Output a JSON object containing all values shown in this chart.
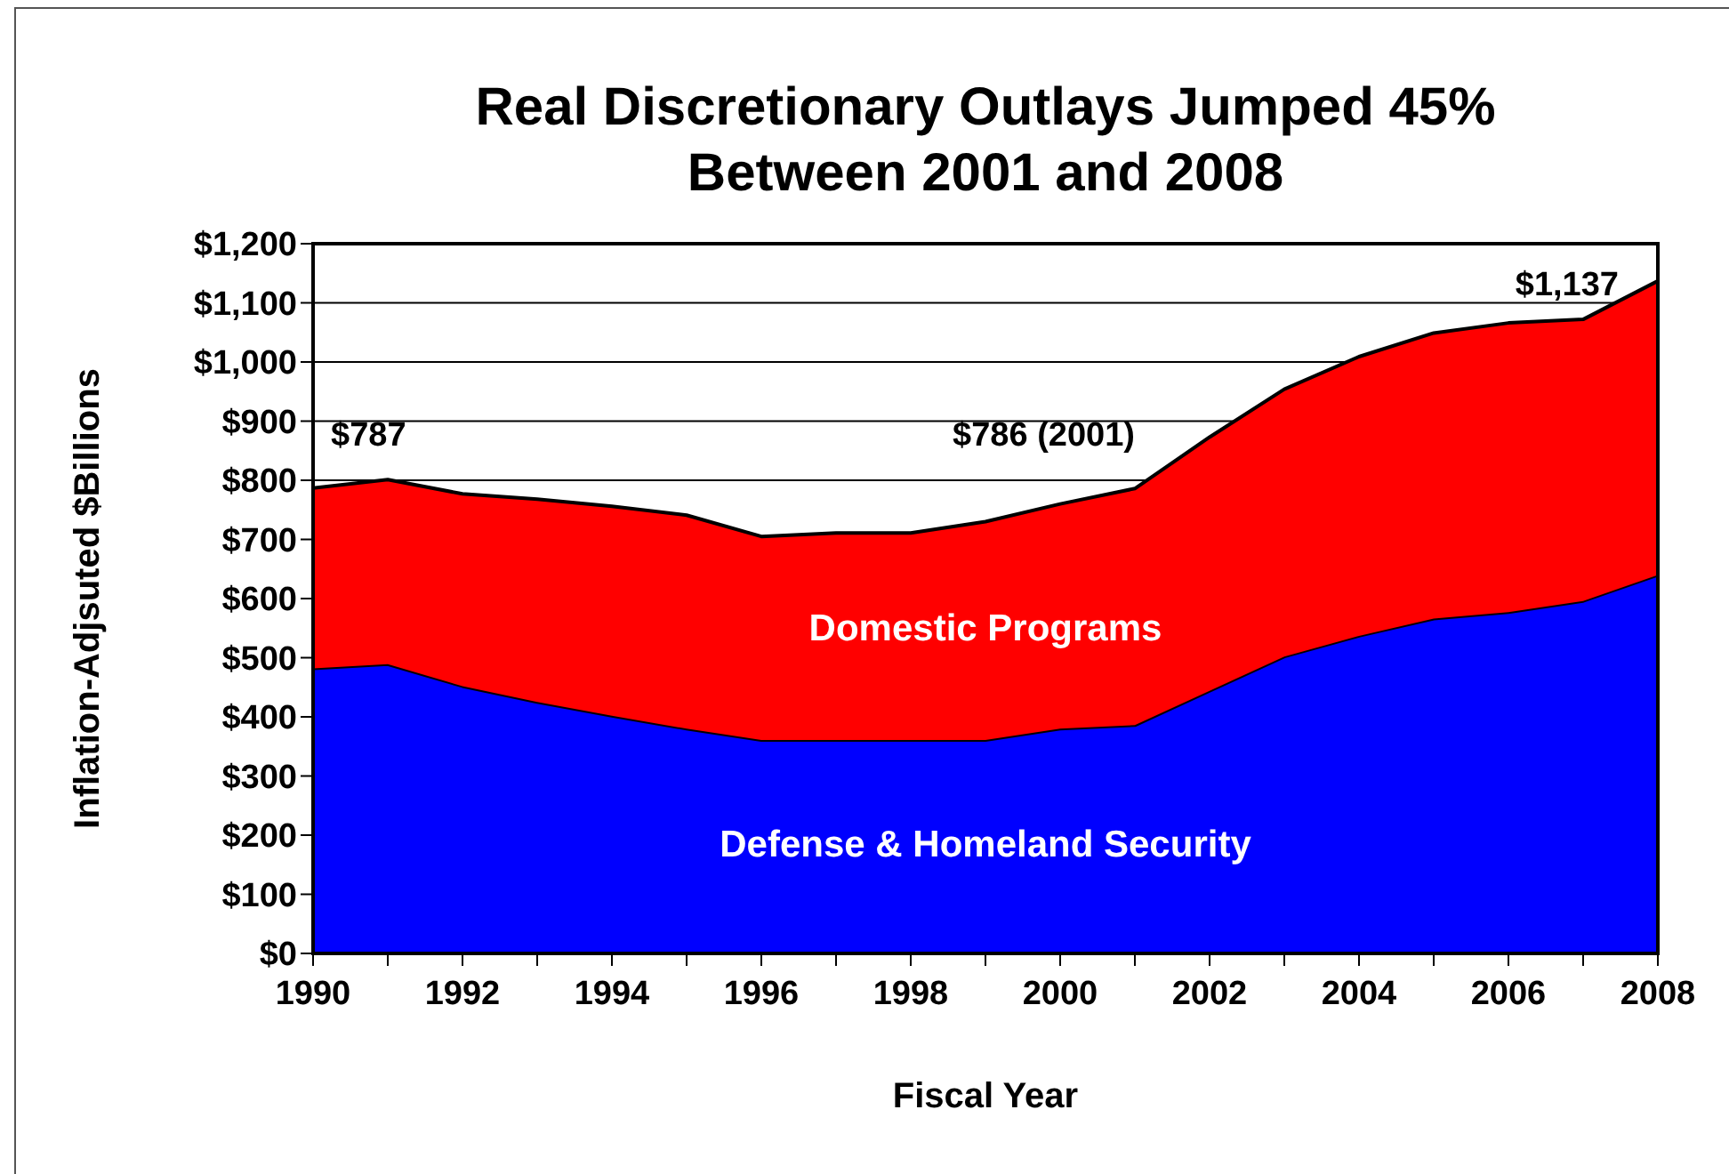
{
  "chart_data": {
    "type": "area",
    "title": "Real Discretionary Outlays Jumped 45% Between 2001 and 2008",
    "xlabel": "Fiscal Year",
    "ylabel": "Inflation-Adjsuted $Billions",
    "stacked": true,
    "grid": "y",
    "x": [
      1990,
      1991,
      1992,
      1993,
      1994,
      1995,
      1996,
      1997,
      1998,
      1999,
      2000,
      2001,
      2002,
      2003,
      2004,
      2005,
      2006,
      2007,
      2008
    ],
    "series": [
      {
        "name": "Defense & Homeland Security",
        "color": "#0000ff",
        "values": [
          482,
          489,
          452,
          425,
          402,
          380,
          361,
          361,
          361,
          361,
          380,
          386,
          444,
          502,
          537,
          566,
          577,
          596,
          640
        ]
      },
      {
        "name": "Domestic Programs",
        "color": "#ff0000",
        "values": [
          305,
          312,
          325,
          343,
          354,
          361,
          344,
          350,
          350,
          369,
          380,
          400,
          429,
          452,
          472,
          483,
          489,
          476,
          497
        ]
      }
    ],
    "xlim": [
      1990,
      2008
    ],
    "xticks": [
      1990,
      {
        "value": 1991,
        "label": null
      },
      1992,
      {
        "value": 1993,
        "label": null
      },
      1994,
      {
        "value": 1995,
        "label": null
      },
      1996,
      {
        "value": 1997,
        "label": null
      },
      1998,
      {
        "value": 1999,
        "label": null
      },
      2000,
      {
        "value": 2001,
        "label": null
      },
      2002,
      {
        "value": 2003,
        "label": null
      },
      2004,
      {
        "value": 2005,
        "label": null
      },
      2006,
      {
        "value": 2007,
        "label": null
      },
      2008
    ],
    "ylim": [
      0,
      1200
    ],
    "yticks": [
      {
        "value": 0,
        "label": "$0"
      },
      {
        "value": 100,
        "label": "$100"
      },
      {
        "value": 200,
        "label": "$200"
      },
      {
        "value": 300,
        "label": "$300"
      },
      {
        "value": 400,
        "label": "$400"
      },
      {
        "value": 500,
        "label": "$500"
      },
      {
        "value": 600,
        "label": "$600"
      },
      {
        "value": 700,
        "label": "$700"
      },
      {
        "value": 800,
        "label": "$800"
      },
      {
        "value": 900,
        "label": "$900"
      },
      {
        "value": 1000,
        "label": "$1,000"
      },
      {
        "value": 1100,
        "label": "$1,100"
      },
      {
        "value": 1200,
        "label": "$1,200"
      }
    ],
    "annotations": [
      {
        "text": "$787",
        "x": 1990,
        "y": 787
      },
      {
        "text": "$786 (2001)",
        "x": 2001,
        "y": 786
      },
      {
        "text": "$1,137",
        "x": 2008,
        "y": 1137
      }
    ]
  }
}
